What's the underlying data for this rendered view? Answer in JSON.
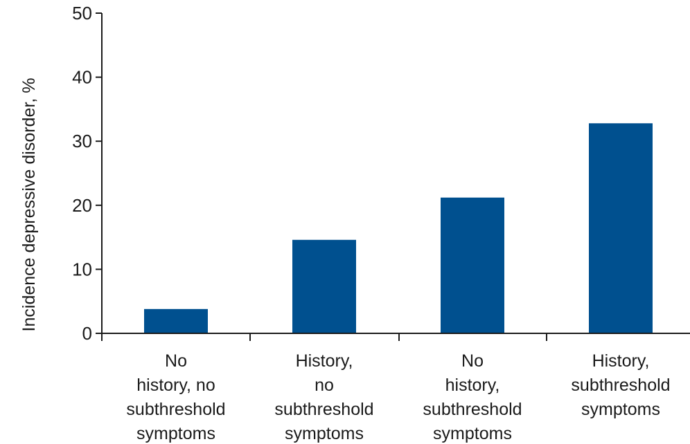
{
  "chart_data": {
    "type": "bar",
    "title": "",
    "xlabel": "",
    "ylabel": "Incidence depressive disorder, %",
    "ylim": [
      0,
      50
    ],
    "yticks": [
      "0",
      "10",
      "20",
      "30",
      "40",
      "50"
    ],
    "categories": [
      [
        "No",
        "history, no",
        "subthreshold",
        "symptoms"
      ],
      [
        "History,",
        "no",
        "subthreshold",
        "symptoms"
      ],
      [
        "No",
        "history,",
        "subthreshold",
        "symptoms"
      ],
      [
        "History,",
        "subthreshold",
        "symptoms"
      ]
    ],
    "values": [
      3.8,
      14.6,
      21.2,
      32.8
    ],
    "bar_color": "#00508f",
    "grid": false,
    "legend": "none"
  }
}
